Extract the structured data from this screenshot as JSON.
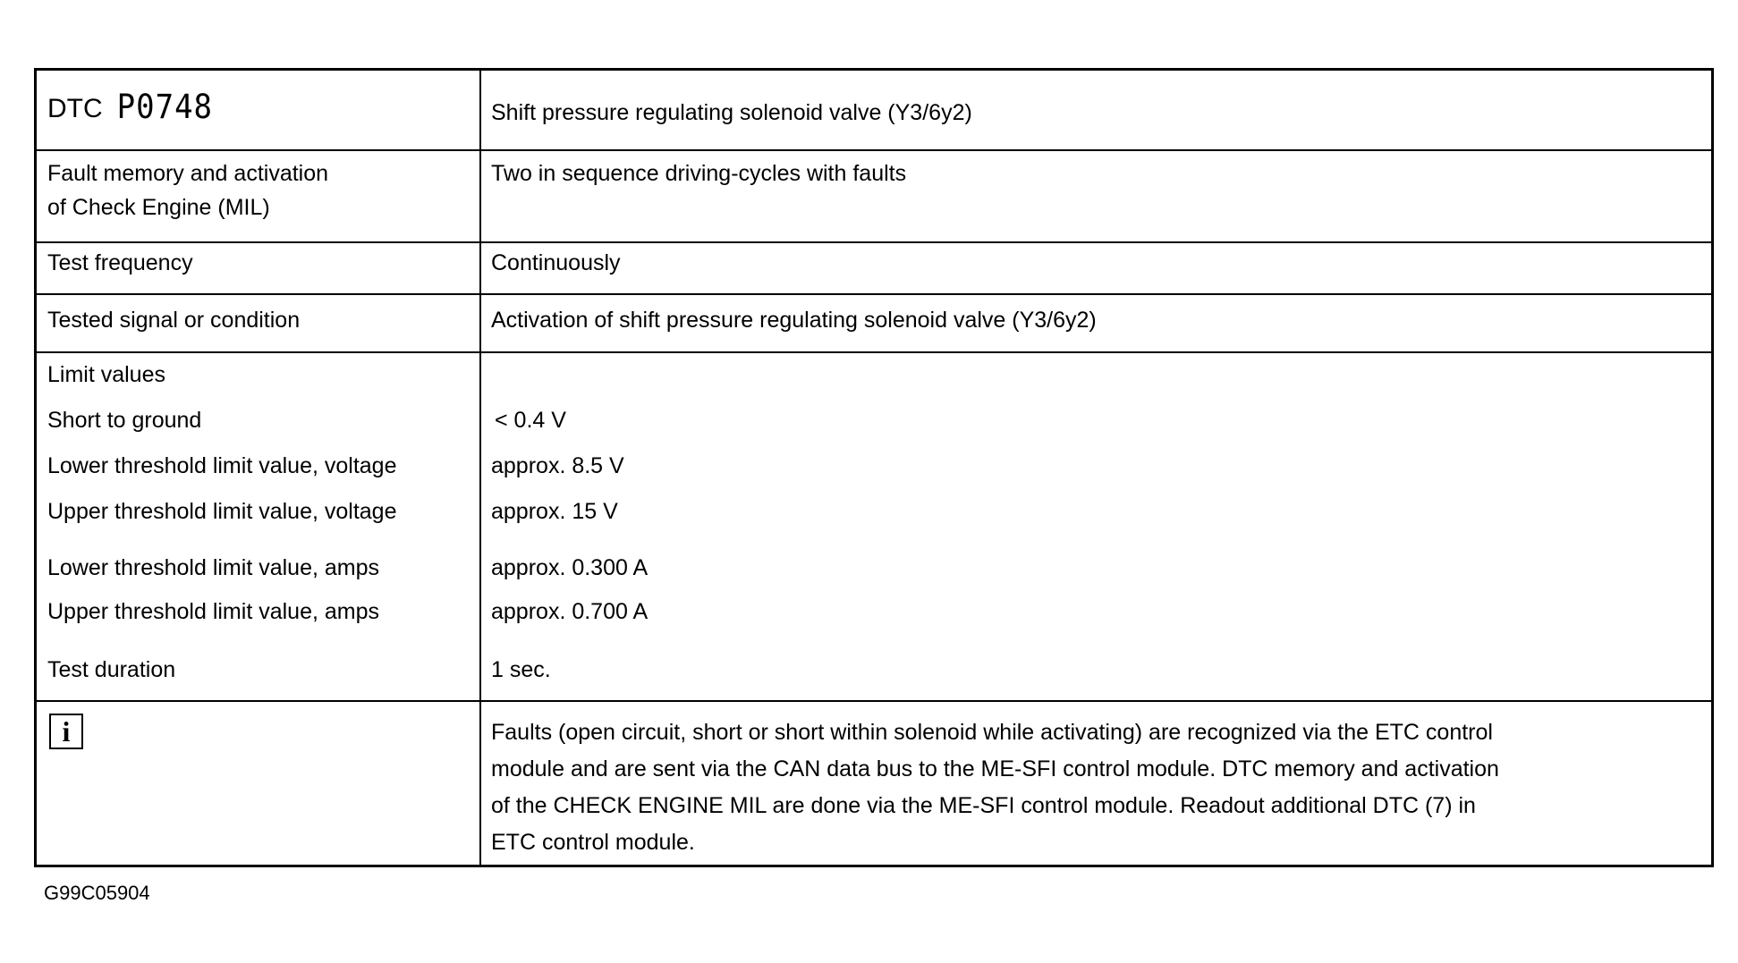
{
  "header": {
    "dtc_label": "DTC",
    "dtc_code": "P0748",
    "description": "Shift pressure regulating solenoid valve (Y3/6y2)"
  },
  "rows": [
    {
      "label_lines": [
        "Fault memory and activation",
        "of Check Engine (MIL)"
      ],
      "value": "Two in sequence driving-cycles with faults"
    },
    {
      "label": "Test frequency",
      "value": "Continuously"
    },
    {
      "label": "Tested signal or condition",
      "value": "Activation of shift pressure regulating solenoid valve (Y3/6y2)"
    }
  ],
  "limits": {
    "heading": "Limit values",
    "items": [
      {
        "label": "Short to ground",
        "value": "< 0.4 V"
      },
      {
        "label": "Lower threshold limit value, voltage",
        "value": "approx. 8.5 V"
      },
      {
        "label": "Upper threshold limit value, voltage",
        "value": "approx. 15 V"
      },
      {
        "label": "Lower threshold limit value, amps",
        "value": "approx. 0.300 A"
      },
      {
        "label": "Upper threshold limit value, amps",
        "value": "approx. 0.700 A"
      },
      {
        "label": "Test duration",
        "value": "1 sec."
      }
    ]
  },
  "info": {
    "icon": "info-icon",
    "icon_glyph": "i",
    "lines": [
      "Faults (open circuit, short or short within solenoid while activating) are recognized via the ETC control",
      "module and are sent via the CAN data bus to the ME-SFI control module.  DTC memory and activation",
      "of the CHECK ENGINE MIL are done via the ME-SFI control module.  Readout additional DTC (7) in",
      "ETC control module."
    ]
  },
  "footer": {
    "figure_id": "G99C05904"
  }
}
